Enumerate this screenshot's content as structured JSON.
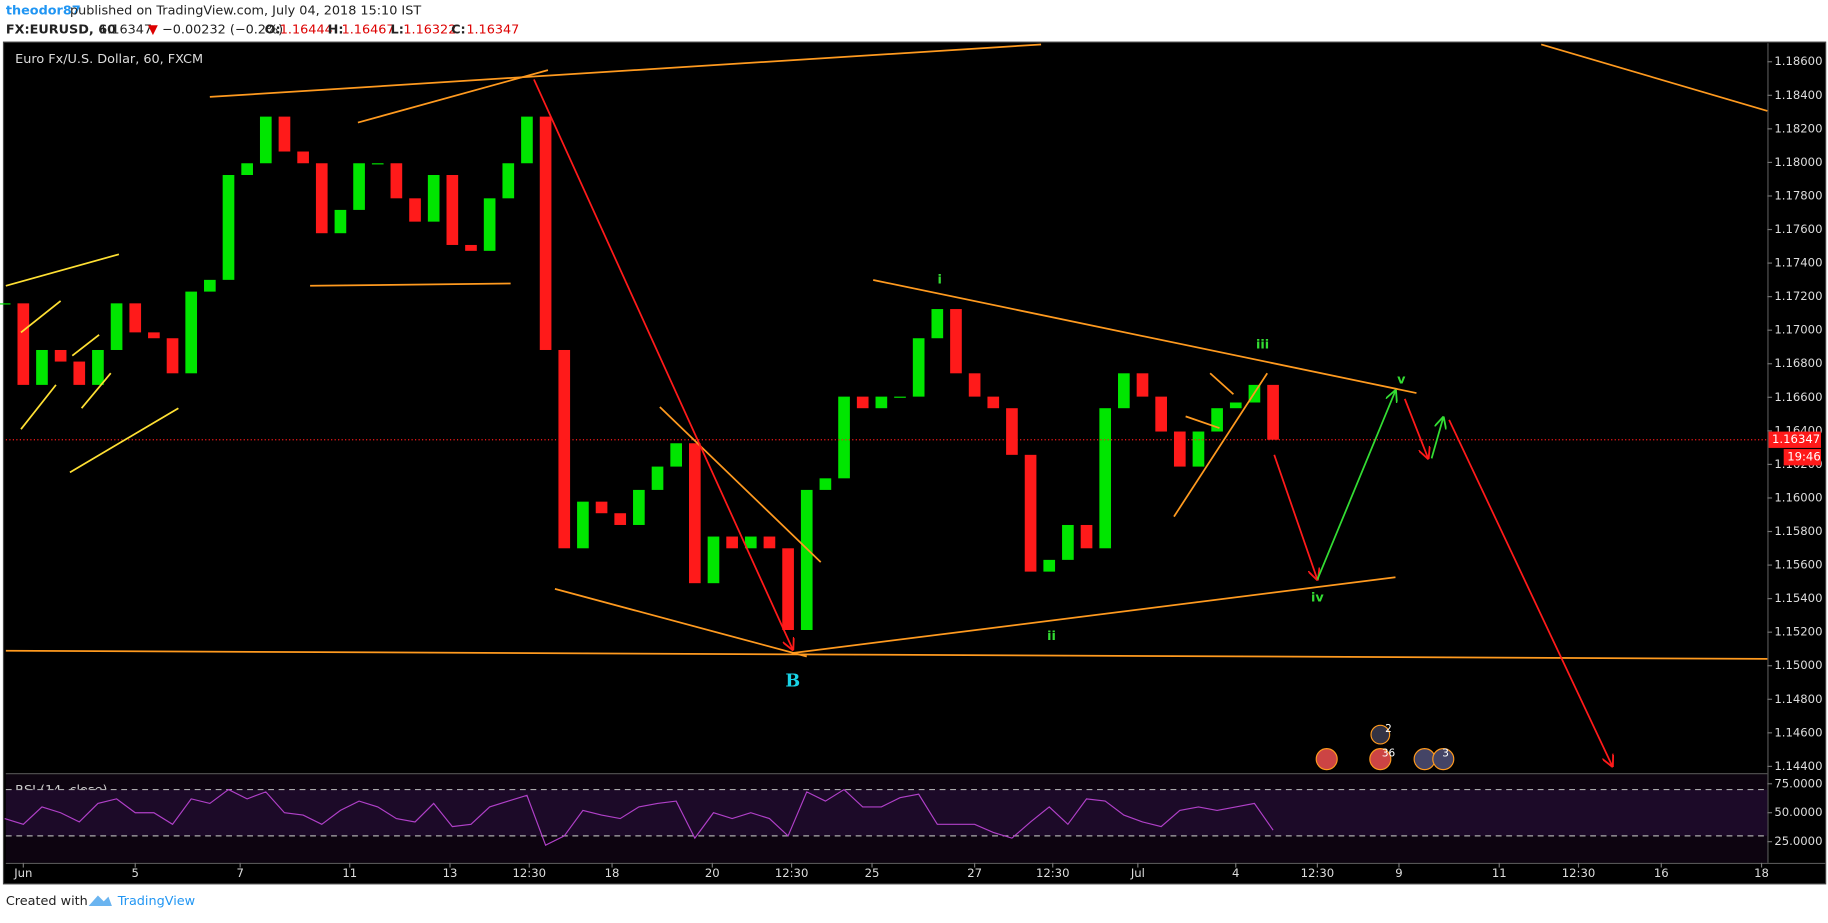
{
  "header": {
    "user": "theodor87",
    "published": "published on TradingView.com, July 04, 2018 15:10 IST",
    "symbol": "FX:EURUSD, 60",
    "last": "1.16347",
    "arrow": "▼",
    "change": "−0.00232 (−0.2%)",
    "open_label": "O:",
    "open": "1.16444",
    "high_label": "H:",
    "high": "1.16467",
    "low_label": "L:",
    "low": "1.16322",
    "close_label": "C:",
    "close": "1.16347",
    "countdown": "19:46"
  },
  "footer": {
    "created": "Created with",
    "brand": "TradingView"
  },
  "chart_data": [
    {
      "type": "candlestick",
      "title": "Euro Fx/U.S. Dollar, 60, FXCM",
      "grid": false,
      "up_color": "#00e600",
      "down_color": "#ff1a1a",
      "x": [
        -8,
        0,
        8,
        16,
        24,
        32,
        40,
        48,
        56,
        64,
        72,
        80,
        88,
        96,
        104,
        112,
        120,
        128,
        136,
        144,
        152,
        160,
        168,
        176,
        184,
        192,
        200,
        208,
        216,
        224,
        232,
        240,
        248,
        256,
        264,
        272,
        280,
        288,
        296,
        304,
        312,
        320,
        328,
        336,
        344,
        352,
        360,
        368,
        376,
        384,
        392,
        400,
        408,
        416,
        424,
        432,
        440,
        448,
        456,
        464,
        472,
        480,
        488,
        496,
        504,
        512,
        520,
        528,
        536
      ],
      "series": [
        {
          "name": "EURUSD",
          "values": [
            1.1716,
            1.16674,
            1.16882,
            1.16813,
            1.16674,
            1.16882,
            1.1716,
            1.16987,
            1.16952,
            1.16743,
            1.1723,
            1.173,
            1.17925,
            1.17995,
            1.18273,
            1.18065,
            1.17995,
            1.17578,
            1.17717,
            1.17995,
            1.17995,
            1.17786,
            1.17647,
            1.17925,
            1.17508,
            1.17473,
            1.17786,
            1.17995,
            1.18273,
            1.16882,
            1.157,
            1.15978,
            1.15909,
            1.15839,
            1.16048,
            1.16187,
            1.16326,
            1.15492,
            1.1577,
            1.157,
            1.1577,
            1.157,
            1.15213,
            1.16048,
            1.16117,
            1.16604,
            1.16535,
            1.16604,
            1.16604,
            1.16952,
            1.17126,
            1.16743,
            1.16604,
            1.16535,
            1.16257,
            1.15561,
            1.15631,
            1.15839,
            1.157,
            1.16535,
            1.16743,
            1.16604,
            1.16396,
            1.16187,
            1.16396,
            1.16535,
            1.16569,
            1.16674,
            1.16347
          ]
        }
      ],
      "xlim": [
        -7.5,
        748
      ],
      "xticks": [
        {
          "value": 0,
          "label": "Jun"
        },
        {
          "value": 48,
          "label": "5"
        },
        {
          "value": 93,
          "label": "7"
        },
        {
          "value": 140,
          "label": "11"
        },
        {
          "value": 183,
          "label": "13"
        },
        {
          "value": 217,
          "label": "12:30"
        },
        {
          "value": 252.5,
          "label": "18"
        },
        {
          "value": 295.5,
          "label": "20"
        },
        {
          "value": 329.5,
          "label": "12:30"
        },
        {
          "value": 364,
          "label": "25"
        },
        {
          "value": 408,
          "label": "27"
        },
        {
          "value": 441.5,
          "label": "12:30"
        },
        {
          "value": 478,
          "label": "Jul"
        },
        {
          "value": 520,
          "label": "4"
        },
        {
          "value": 555,
          "label": "12:30"
        },
        {
          "value": 590,
          "label": "9"
        },
        {
          "value": 633,
          "label": "11"
        },
        {
          "value": 667,
          "label": "12:30"
        },
        {
          "value": 702.5,
          "label": "16"
        },
        {
          "value": 745.5,
          "label": "18"
        }
      ],
      "ylim": [
        1.1436,
        1.1871
      ],
      "yticks": [
        {
          "value": 1.144,
          "label": "1.14400"
        },
        {
          "value": 1.146,
          "label": "1.14600"
        },
        {
          "value": 1.148,
          "label": "1.14800"
        },
        {
          "value": 1.15,
          "label": "1.15000"
        },
        {
          "value": 1.152,
          "label": "1.15200"
        },
        {
          "value": 1.154,
          "label": "1.15400"
        },
        {
          "value": 1.156,
          "label": "1.15600"
        },
        {
          "value": 1.158,
          "label": "1.15800"
        },
        {
          "value": 1.16,
          "label": "1.16000"
        },
        {
          "value": 1.162,
          "label": "1.16200"
        },
        {
          "value": 1.164,
          "label": "1.16400"
        },
        {
          "value": 1.166,
          "label": "1.16600"
        },
        {
          "value": 1.168,
          "label": "1.16800"
        },
        {
          "value": 1.17,
          "label": "1.17000"
        },
        {
          "value": 1.172,
          "label": "1.17200"
        },
        {
          "value": 1.174,
          "label": "1.17400"
        },
        {
          "value": 1.176,
          "label": "1.17600"
        },
        {
          "value": 1.178,
          "label": "1.17800"
        },
        {
          "value": 1.18,
          "label": "1.18000"
        },
        {
          "value": 1.182,
          "label": "1.18200"
        },
        {
          "value": 1.184,
          "label": "1.18400"
        },
        {
          "value": 1.186,
          "label": "1.18600"
        }
      ],
      "annotations": [
        "i",
        "ii",
        "iii",
        "iv",
        "v",
        "B"
      ],
      "events": [
        "2",
        "36",
        "3"
      ]
    },
    {
      "type": "line",
      "title": "RSI (14, close)",
      "color": "#b040c8",
      "x": [
        -8,
        0,
        8,
        16,
        24,
        32,
        40,
        48,
        56,
        64,
        72,
        80,
        88,
        96,
        104,
        112,
        120,
        128,
        136,
        144,
        152,
        160,
        168,
        176,
        184,
        192,
        200,
        208,
        216,
        224,
        232,
        240,
        248,
        256,
        264,
        272,
        280,
        288,
        296,
        304,
        312,
        320,
        328,
        336,
        344,
        352,
        360,
        368,
        376,
        384,
        392,
        400,
        408,
        416,
        424,
        432,
        440,
        448,
        456,
        464,
        472,
        480,
        488,
        496,
        504,
        512,
        520,
        528,
        536
      ],
      "values": [
        45,
        40,
        55,
        50,
        42,
        58,
        62,
        50,
        50,
        40,
        62,
        58,
        70,
        62,
        68,
        50,
        48,
        40,
        52,
        60,
        55,
        45,
        42,
        58,
        38,
        40,
        55,
        60,
        65,
        22,
        30,
        52,
        48,
        45,
        55,
        58,
        60,
        28,
        50,
        45,
        50,
        45,
        30,
        68,
        60,
        70,
        55,
        55,
        63,
        66,
        40,
        40,
        40,
        33,
        28,
        42,
        55,
        40,
        62,
        60,
        48,
        42,
        38,
        52,
        55,
        52,
        55,
        58,
        35
      ],
      "xlim": [
        -7.5,
        748
      ],
      "ylim": [
        6.7,
        83.2
      ],
      "bands": [
        70,
        30
      ],
      "yticks": [
        {
          "value": 25,
          "label": "25.0000"
        },
        {
          "value": 50,
          "label": "50.0000"
        },
        {
          "value": 75,
          "label": "75.0000"
        }
      ]
    }
  ]
}
